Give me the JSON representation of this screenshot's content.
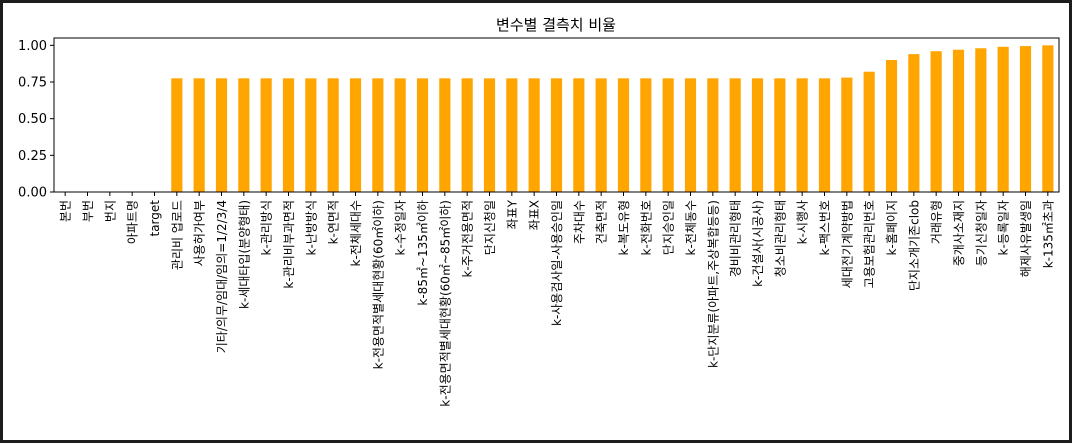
{
  "chart_data": {
    "type": "bar",
    "title": "변수별 결측치 비율",
    "xlabel": "",
    "ylabel": "",
    "ylim": [
      0,
      1.05
    ],
    "yticks": [
      "0.00",
      "0.25",
      "0.50",
      "0.75",
      "1.00"
    ],
    "grid": false,
    "legend": "none",
    "bar_color": "#FFA500",
    "categories": [
      "본번",
      "부번",
      "번지",
      "아파트명",
      "target",
      "관리비 업로드",
      "사용허가여부",
      "기타/의무/임대/임의=1/2/3/4",
      "k-세대타입(분양형태)",
      "k-관리방식",
      "k-관리비부과면적",
      "k-난방방식",
      "k-연면적",
      "k-전체세대수",
      "k-전용면적별세대현황(60㎡이하)",
      "k-수정일자",
      "k-85㎡~135㎡이하",
      "k-전용면적별세대현황(60㎡~85㎡이하)",
      "k-주거전용면적",
      "단지신청일",
      "좌표Y",
      "좌표X",
      "k-사용검사일-사용승인일",
      "주차대수",
      "건축면적",
      "k-복도유형",
      "k-전화번호",
      "단지승인일",
      "k-전체동수",
      "k-단지분류(아파트,주상복합등등)",
      "경비비관리형태",
      "k-건설사(시공사)",
      "청소비관리형태",
      "k-시행사",
      "k-팩스번호",
      "세대전기계약방법",
      "고용보험관리번호",
      "k-홈페이지",
      "단지소개기존clob",
      "거래유형",
      "중개사소재지",
      "등기신청일자",
      "k-등록일자",
      "해제사유발생일",
      "k-135㎡초과"
    ],
    "values": [
      0.0,
      0.0,
      0.0,
      0.0,
      0.0014,
      0.775,
      0.775,
      0.775,
      0.775,
      0.775,
      0.775,
      0.775,
      0.775,
      0.775,
      0.775,
      0.775,
      0.775,
      0.775,
      0.775,
      0.775,
      0.775,
      0.775,
      0.775,
      0.775,
      0.775,
      0.775,
      0.775,
      0.775,
      0.775,
      0.775,
      0.775,
      0.775,
      0.775,
      0.775,
      0.775,
      0.78,
      0.82,
      0.9,
      0.94,
      0.96,
      0.97,
      0.98,
      0.99,
      0.995,
      1.0
    ]
  }
}
